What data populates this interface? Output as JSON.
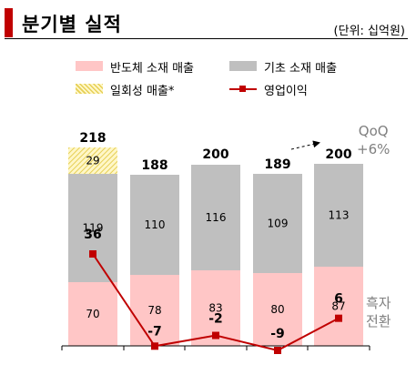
{
  "header": {
    "title": "분기별 실적",
    "unit": "(단위: 십억원)"
  },
  "legend": [
    {
      "key": "semiconductor",
      "label": "반도체 소재 매출",
      "color": "#ffc6c6"
    },
    {
      "key": "base",
      "label": "기초 소재 매출",
      "color": "#bfbfbf"
    },
    {
      "key": "one_off",
      "label": "일회성 매출*",
      "color": "#e6cf55"
    },
    {
      "key": "operating_profit",
      "label": "영업이익",
      "color": "#c00000"
    }
  ],
  "annotations": {
    "qoq_line1": "QoQ",
    "qoq_line2": "+6%",
    "turnaround_line1": "흑자",
    "turnaround_line2": "전환"
  },
  "chart_data": {
    "type": "bar",
    "stacked": true,
    "categories": [
      "",
      "",
      "",
      "",
      ""
    ],
    "series": [
      {
        "name": "반도체 소재 매출",
        "values": [
          70,
          78,
          83,
          80,
          87
        ],
        "color": "#ffc6c6"
      },
      {
        "name": "기초 소재 매출",
        "values": [
          119,
          110,
          116,
          109,
          113
        ],
        "color": "#bfbfbf"
      },
      {
        "name": "일회성 매출*",
        "values": [
          29,
          0,
          0,
          0,
          0
        ],
        "color": "#e6cf55"
      }
    ],
    "totals": [
      218,
      188,
      200,
      189,
      200
    ],
    "line_series": {
      "name": "영업이익",
      "values": [
        36,
        -7,
        -2,
        -9,
        6
      ],
      "color": "#c00000"
    },
    "ylim": [
      0,
      230
    ],
    "line_ylim": [
      -12,
      40
    ],
    "grid": false,
    "legend_position": "top"
  }
}
